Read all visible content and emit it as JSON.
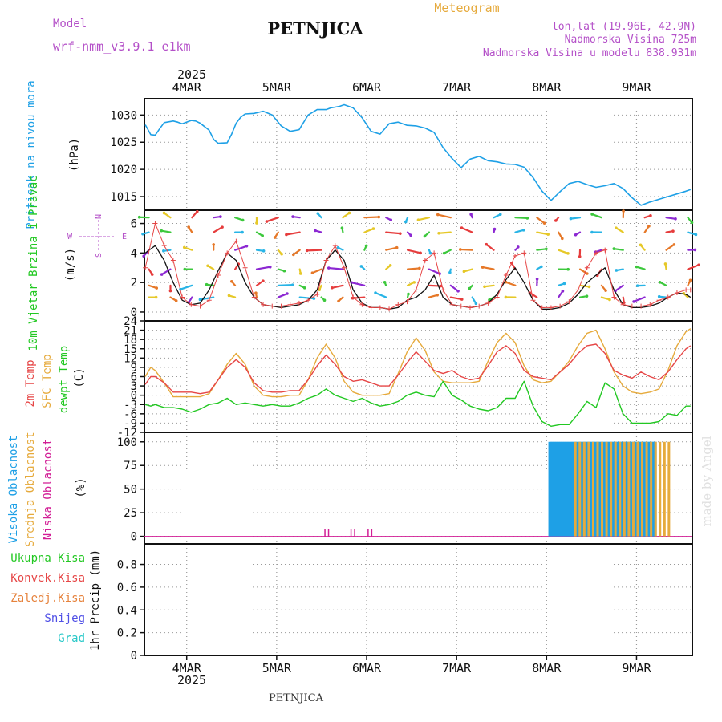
{
  "header": {
    "model_label": "Model",
    "model_name": "wrf-nmm_v3.9.1  e1km",
    "title": "PETNJICA",
    "meteogram_label": "Meteogram",
    "lonlat": "lon,lat (19.96E, 42.9N)",
    "elevation": "Nadmorska Visina 725m",
    "model_elevation": "Nadmorska Visina u modelu 838.931m",
    "footer_station": "PETNJICA",
    "watermark": "made by Angel"
  },
  "colors": {
    "pressure": "#1ea0e6",
    "temp2m": "#e64646",
    "sfc_temp": "#e6aa3c",
    "dewpt": "#22c822",
    "high_cloud": "#1ea0e6",
    "mid_cloud": "#e6aa3c",
    "low_cloud": "#d21e96",
    "wind_label_green": "#22c822",
    "compass": "#b450c8",
    "model": "#b450c8",
    "meteogram": "#e6aa3c",
    "watermark": "#e1e1e1"
  },
  "chart_data": [
    {
      "type": "line",
      "panel": "pressure",
      "year_label": "2025",
      "date_labels": [
        "4MAR",
        "5MAR",
        "6MAR",
        "7MAR",
        "8MAR",
        "9MAR"
      ],
      "day_positions": [
        4,
        5,
        6,
        7,
        8,
        9
      ],
      "xlim": [
        3.53,
        9.62
      ],
      "ylabel_colored": "Pritisak na nivou mora",
      "ylabel": "(hPa)",
      "yticks": [
        "1015",
        "1020",
        "1025",
        "1030"
      ],
      "ylim": [
        1012.5,
        1033
      ],
      "x": [
        3.54,
        3.6,
        3.65,
        3.7,
        3.75,
        3.85,
        3.9,
        3.95,
        4.05,
        4.1,
        4.15,
        4.25,
        4.3,
        4.35,
        4.45,
        4.5,
        4.55,
        4.6,
        4.65,
        4.75,
        4.85,
        4.95,
        5.05,
        5.15,
        5.25,
        5.35,
        5.45,
        5.55,
        5.6,
        5.7,
        5.75,
        5.85,
        5.95,
        6.05,
        6.15,
        6.25,
        6.35,
        6.45,
        6.55,
        6.65,
        6.75,
        6.85,
        6.95,
        7.05,
        7.15,
        7.25,
        7.35,
        7.45,
        7.55,
        7.65,
        7.75,
        7.85,
        7.95,
        8.05,
        8.15,
        8.25,
        8.35,
        8.45,
        8.55,
        8.65,
        8.75,
        8.85,
        8.95,
        9.05,
        9.15,
        9.25,
        9.35,
        9.45,
        9.55,
        9.6
      ],
      "series": [
        {
          "name": "",
          "values": [
            1028.2,
            1026.4,
            1026.3,
            1027.5,
            1028.6,
            1028.9,
            1028.7,
            1028.4,
            1029.0,
            1028.9,
            1028.5,
            1027.2,
            1025.5,
            1024.8,
            1024.9,
            1026.5,
            1028.5,
            1029.6,
            1030.2,
            1030.3,
            1030.7,
            1030.0,
            1028.0,
            1027.0,
            1027.3,
            1030.0,
            1031.0,
            1031.0,
            1031.3,
            1031.6,
            1031.9,
            1031.3,
            1029.5,
            1027.0,
            1026.5,
            1028.4,
            1028.7,
            1028.1,
            1028.0,
            1027.6,
            1026.8,
            1024.0,
            1022.0,
            1020.3,
            1021.9,
            1022.4,
            1021.6,
            1021.4,
            1021.0,
            1020.9,
            1020.4,
            1018.5,
            1016.0,
            1014.3,
            1015.9,
            1017.4,
            1017.8,
            1017.2,
            1016.7,
            1017.0,
            1017.4,
            1016.5,
            1014.8,
            1013.4,
            1014.0,
            1014.5,
            1015.0,
            1015.5,
            1016.0,
            1016.3
          ]
        }
      ]
    },
    {
      "type": "line",
      "panel": "wind",
      "ylabel_colored": "10m Vjetar Brzina i Pravac",
      "ylabel": "(m/s)",
      "compass_letters": [
        "N",
        "S",
        "W",
        "E"
      ],
      "yticks": [
        "0",
        "2",
        "4",
        "6"
      ],
      "ylim": [
        -0.6,
        6.9
      ],
      "x": [
        3.54,
        3.65,
        3.75,
        3.85,
        3.95,
        4.05,
        4.15,
        4.25,
        4.35,
        4.45,
        4.55,
        4.65,
        4.75,
        4.85,
        4.95,
        5.05,
        5.15,
        5.25,
        5.35,
        5.45,
        5.55,
        5.65,
        5.75,
        5.85,
        5.95,
        6.05,
        6.15,
        6.25,
        6.35,
        6.45,
        6.55,
        6.65,
        6.75,
        6.85,
        6.95,
        7.05,
        7.15,
        7.25,
        7.35,
        7.45,
        7.55,
        7.65,
        7.75,
        7.85,
        7.95,
        8.05,
        8.15,
        8.25,
        8.35,
        8.45,
        8.55,
        8.65,
        8.75,
        8.85,
        8.95,
        9.05,
        9.15,
        9.25,
        9.35,
        9.45,
        9.55,
        9.6
      ],
      "series": [
        {
          "name": "",
          "values": [
            4.0,
            4.5,
            3.5,
            2.0,
            0.8,
            0.5,
            0.6,
            1.5,
            2.8,
            4.0,
            3.5,
            2.0,
            1.0,
            0.5,
            0.4,
            0.3,
            0.4,
            0.5,
            0.8,
            1.5,
            3.5,
            4.2,
            3.5,
            1.5,
            0.6,
            0.3,
            0.3,
            0.2,
            0.3,
            0.8,
            1.0,
            1.5,
            2.5,
            1.0,
            0.5,
            0.4,
            0.3,
            0.4,
            0.6,
            1.2,
            2.2,
            3.0,
            2.0,
            0.8,
            0.2,
            0.2,
            0.3,
            0.6,
            1.2,
            2.0,
            2.5,
            3.0,
            1.5,
            0.5,
            0.3,
            0.3,
            0.4,
            0.6,
            1.0,
            1.3,
            1.2,
            1.0
          ]
        },
        {
          "name": "",
          "values": [
            3.0,
            6.0,
            4.5,
            3.5,
            1.0,
            0.5,
            0.4,
            0.8,
            2.5,
            4.0,
            4.8,
            3.0,
            1.0,
            0.5,
            0.4,
            0.4,
            0.5,
            0.6,
            0.8,
            1.2,
            3.5,
            4.5,
            3.0,
            1.0,
            0.5,
            0.3,
            0.3,
            0.2,
            0.5,
            0.7,
            1.5,
            3.5,
            4.0,
            1.5,
            0.5,
            0.4,
            0.3,
            0.4,
            0.6,
            1.0,
            2.5,
            3.8,
            4.0,
            0.8,
            0.3,
            0.3,
            0.4,
            0.7,
            1.5,
            3.0,
            4.0,
            4.2,
            1.0,
            0.5,
            0.4,
            0.4,
            0.5,
            0.8,
            1.0,
            1.3,
            1.5,
            1.5
          ]
        }
      ],
      "arrow_rows": [
        1.0,
        1.8,
        2.9,
        4.2,
        5.4,
        6.4
      ]
    },
    {
      "type": "line",
      "panel": "temperature",
      "ylabels_colored": [
        "2m Temp",
        "SFC Temp",
        "dewpt Temp"
      ],
      "ylabel": "(C)",
      "yticks": [
        "-12",
        "-9",
        "-6",
        "-3",
        "0",
        "3",
        "6",
        "9",
        "12",
        "15",
        "18",
        "21",
        "24"
      ],
      "ylim": [
        -12,
        24
      ],
      "x": [
        3.54,
        3.6,
        3.65,
        3.75,
        3.85,
        3.95,
        4.05,
        4.15,
        4.25,
        4.35,
        4.45,
        4.55,
        4.65,
        4.75,
        4.85,
        4.95,
        5.05,
        5.15,
        5.25,
        5.35,
        5.45,
        5.55,
        5.65,
        5.75,
        5.85,
        5.95,
        6.05,
        6.15,
        6.25,
        6.35,
        6.45,
        6.55,
        6.65,
        6.75,
        6.85,
        6.95,
        7.05,
        7.15,
        7.25,
        7.35,
        7.45,
        7.55,
        7.65,
        7.75,
        7.85,
        7.95,
        8.05,
        8.15,
        8.25,
        8.35,
        8.45,
        8.55,
        8.65,
        8.75,
        8.85,
        8.95,
        9.05,
        9.15,
        9.25,
        9.35,
        9.45,
        9.55,
        9.6
      ],
      "series": [
        {
          "name": "",
          "values": [
            3.5,
            6.0,
            6.0,
            4.0,
            1.0,
            1.0,
            1.0,
            0.5,
            1.0,
            5.0,
            9.0,
            11.5,
            9.0,
            4.0,
            1.5,
            1.0,
            1.0,
            1.5,
            1.5,
            5.0,
            9.5,
            13.0,
            10.0,
            6.0,
            4.5,
            5.0,
            4.0,
            3.0,
            3.0,
            6.5,
            10.5,
            14.0,
            11.0,
            8.0,
            7.0,
            8.0,
            6.0,
            5.0,
            5.5,
            9.5,
            14.0,
            16.0,
            13.5,
            8.0,
            6.0,
            5.5,
            5.0,
            7.5,
            10.0,
            13.5,
            16.0,
            16.5,
            13.5,
            8.0,
            6.5,
            5.5,
            7.5,
            6.0,
            5.0,
            7.5,
            11.5,
            15.0,
            16.0
          ]
        },
        {
          "name": "",
          "values": [
            6.0,
            9.0,
            8.0,
            4.0,
            -0.5,
            -0.5,
            -0.5,
            -0.5,
            0.5,
            5.0,
            10.0,
            13.5,
            10.0,
            3.0,
            0.0,
            -0.5,
            -0.5,
            0.0,
            0.0,
            5.0,
            12.0,
            16.5,
            12.0,
            4.5,
            1.0,
            0.0,
            0.0,
            0.0,
            0.5,
            7.0,
            14.0,
            18.5,
            14.5,
            7.5,
            4.5,
            4.0,
            4.0,
            4.0,
            4.5,
            11.0,
            17.0,
            20.0,
            17.0,
            9.5,
            5.0,
            4.0,
            4.5,
            7.5,
            11.0,
            16.0,
            20.0,
            21.0,
            15.0,
            7.5,
            3.0,
            1.0,
            0.5,
            1.0,
            2.0,
            8.0,
            16.0,
            20.5,
            21.5
          ]
        },
        {
          "name": "",
          "values": [
            -3.0,
            -3.5,
            -3.0,
            -4.0,
            -4.0,
            -4.5,
            -5.5,
            -4.5,
            -3.0,
            -2.5,
            -1.0,
            -3.0,
            -2.5,
            -3.0,
            -3.5,
            -3.0,
            -3.5,
            -3.5,
            -2.5,
            -1.0,
            0.0,
            2.0,
            0.0,
            -1.0,
            -2.0,
            -1.0,
            -2.5,
            -3.5,
            -3.0,
            -2.0,
            0.0,
            1.0,
            0.0,
            -0.5,
            4.5,
            0.0,
            -1.5,
            -3.5,
            -4.5,
            -5.0,
            -4.0,
            -1.0,
            -1.0,
            4.5,
            -3.5,
            -8.5,
            -10.0,
            -9.5,
            -9.5,
            -6.0,
            -2.0,
            -4.0,
            4.0,
            2.0,
            -6.0,
            -9.0,
            -9.0,
            -9.0,
            -8.5,
            -6.0,
            -6.5,
            -3.5,
            -3.5
          ]
        }
      ]
    },
    {
      "type": "bar",
      "panel": "clouds",
      "ylabels_colored": [
        "Visoka Oblacnost",
        "Srednja Oblacnost",
        "Niska Oblacnost"
      ],
      "ylabel": "(%)",
      "yticks": [
        "0",
        "25",
        "50",
        "75",
        "100"
      ],
      "ylim": [
        -8,
        110
      ],
      "series": [
        {
          "name": "",
          "x_start": 8.02,
          "x_end": 9.18,
          "count": 52,
          "value": 100
        },
        {
          "name": "",
          "x_start": 8.28,
          "x_end": 9.32,
          "count": 22,
          "value": 100
        },
        {
          "name": "",
          "x": [
            5.53,
            5.57,
            5.82,
            5.86,
            6.01,
            6.05
          ],
          "value": 2
        }
      ]
    },
    {
      "type": "line",
      "panel": "precipitation",
      "legend": [
        "Ukupna Kisa",
        "Konvek.Kisa",
        "Zaledj.Kisa",
        "Snijeg",
        "Grad"
      ],
      "legend_colors": [
        "#22c822",
        "#e64646",
        "#e6823c",
        "#5050e6",
        "#28c8c8"
      ],
      "ylabel": "1hr Precip (mm)",
      "yticks": [
        "0",
        "0.2",
        "0.4",
        "0.6",
        "0.8"
      ],
      "ylim": [
        0,
        0.98
      ],
      "series": []
    }
  ]
}
